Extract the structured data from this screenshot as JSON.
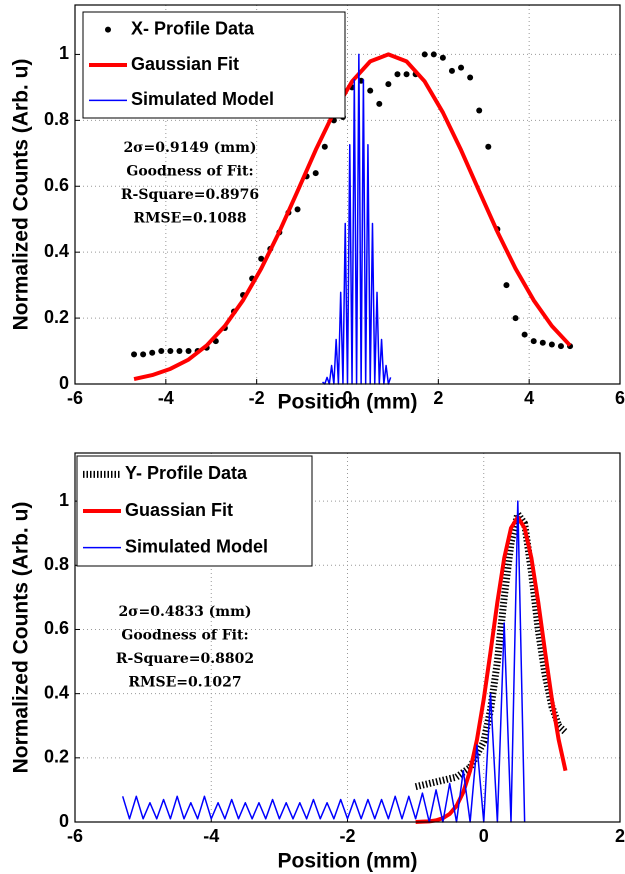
{
  "chart_data": [
    {
      "type": "line",
      "xlabel": "Position (mm)",
      "ylabel": "Normalized Counts (Arb. u)",
      "xlim": [
        -6,
        6
      ],
      "xticks": [
        -6,
        -4,
        -2,
        0,
        2,
        4,
        6
      ],
      "ylim": [
        0,
        1.15
      ],
      "yticks": [
        0,
        0.2,
        0.4,
        0.6,
        0.8,
        1
      ],
      "grid": true,
      "legend": "upper left",
      "annotations": [
        "2σ=0.9149 (mm)",
        "Goodness of Fit:",
        "R-Square=0.8976",
        "RMSE=0.1088"
      ],
      "series": [
        {
          "name": "X- Profile Data",
          "color": "#000000",
          "marker": "dot",
          "x": [
            -4.7,
            -4.5,
            -4.3,
            -4.1,
            -3.9,
            -3.7,
            -3.5,
            -3.3,
            -3.1,
            -2.9,
            -2.7,
            -2.5,
            -2.3,
            -2.1,
            -1.9,
            -1.7,
            -1.5,
            -1.3,
            -1.1,
            -0.9,
            -0.7,
            -0.5,
            -0.3,
            -0.1,
            0.1,
            0.3,
            0.5,
            0.7,
            0.9,
            1.1,
            1.3,
            1.5,
            1.7,
            1.9,
            2.1,
            2.3,
            2.5,
            2.7,
            2.9,
            3.1,
            3.3,
            3.5,
            3.7,
            3.9,
            4.1,
            4.3,
            4.5,
            4.7,
            4.9
          ],
          "values": [
            0.09,
            0.09,
            0.095,
            0.1,
            0.1,
            0.1,
            0.1,
            0.1,
            0.11,
            0.13,
            0.17,
            0.22,
            0.27,
            0.32,
            0.38,
            0.41,
            0.46,
            0.52,
            0.53,
            0.63,
            0.64,
            0.72,
            0.8,
            0.81,
            0.9,
            0.92,
            0.89,
            0.85,
            0.91,
            0.94,
            0.94,
            0.94,
            1.0,
            1.0,
            0.99,
            0.95,
            0.96,
            0.93,
            0.83,
            0.72,
            0.47,
            0.3,
            0.2,
            0.15,
            0.13,
            0.125,
            0.12,
            0.115,
            0.115
          ]
        },
        {
          "name": "Gaussian Fit",
          "color": "#ff0000",
          "linewidth": 4,
          "x": [
            -4.7,
            -4.3,
            -3.9,
            -3.5,
            -3.1,
            -2.7,
            -2.3,
            -1.9,
            -1.5,
            -1.1,
            -0.7,
            -0.3,
            0.1,
            0.5,
            0.9,
            1.3,
            1.7,
            2.1,
            2.5,
            2.9,
            3.3,
            3.7,
            4.1,
            4.5,
            4.9
          ],
          "values": [
            0.015,
            0.027,
            0.046,
            0.074,
            0.117,
            0.176,
            0.254,
            0.35,
            0.462,
            0.585,
            0.71,
            0.824,
            0.918,
            0.979,
            1.0,
            0.979,
            0.918,
            0.824,
            0.71,
            0.585,
            0.462,
            0.35,
            0.254,
            0.176,
            0.117
          ]
        },
        {
          "name": "Simulated Model",
          "color": "#0000ff",
          "linewidth": 1.5,
          "x": [
            -0.55,
            -0.5,
            -0.45,
            -0.4,
            -0.35,
            -0.3,
            -0.25,
            -0.2,
            -0.15,
            -0.1,
            -0.05,
            0,
            0.05,
            0.1,
            0.15,
            0.2,
            0.25,
            0.3,
            0.35,
            0.4,
            0.45,
            0.5,
            0.55,
            0.6,
            0.65,
            0.7,
            0.75,
            0.8,
            0.85,
            0.9,
            0.95
          ],
          "values": [
            0.006,
            0,
            0.02,
            0,
            0.056,
            0,
            0.135,
            0,
            0.278,
            0,
            0.487,
            0,
            0.726,
            0,
            0.923,
            0,
            1.0,
            0,
            0.923,
            0,
            0.726,
            0,
            0.487,
            0,
            0.278,
            0,
            0.135,
            0,
            0.056,
            0,
            0.02
          ]
        }
      ]
    },
    {
      "type": "line",
      "xlabel": "Position (mm)",
      "ylabel": "Normalized Counts (Arb. u)",
      "xlim": [
        -6,
        2
      ],
      "xticks": [
        -6,
        -4,
        -2,
        0,
        2
      ],
      "ylim": [
        0,
        1.15
      ],
      "yticks": [
        0,
        0.2,
        0.4,
        0.6,
        0.8,
        1
      ],
      "grid": true,
      "legend": "upper left",
      "annotations": [
        "2σ=0.4833 (mm)",
        "Goodness of Fit:",
        "R-Square=0.8802",
        "RMSE=0.1027"
      ],
      "series": [
        {
          "name": "Y- Profile Data",
          "color": "#000000",
          "linestyle": "dotted",
          "linewidth": 7,
          "x": [
            -1,
            -0.8,
            -0.6,
            -0.4,
            -0.2,
            0,
            0.1,
            0.2,
            0.3,
            0.4,
            0.5,
            0.6,
            0.7,
            0.8,
            0.9,
            1,
            1.1,
            1.2
          ],
          "values": [
            0.11,
            0.12,
            0.13,
            0.14,
            0.17,
            0.25,
            0.35,
            0.5,
            0.7,
            0.87,
            0.96,
            0.93,
            0.78,
            0.6,
            0.46,
            0.36,
            0.3,
            0.28
          ]
        },
        {
          "name": "Guassian Fit",
          "color": "#ff0000",
          "linewidth": 4,
          "x": [
            -1,
            -0.9,
            -0.8,
            -0.7,
            -0.6,
            -0.5,
            -0.4,
            -0.3,
            -0.2,
            -0.1,
            0,
            0.1,
            0.2,
            0.3,
            0.4,
            0.5,
            0.6,
            0.7,
            0.8,
            0.9,
            1,
            1.1,
            1.2
          ],
          "values": [
            0,
            0.001,
            0.002,
            0.005,
            0.012,
            0.025,
            0.05,
            0.093,
            0.16,
            0.256,
            0.383,
            0.531,
            0.685,
            0.822,
            0.916,
            0.95,
            0.916,
            0.822,
            0.685,
            0.531,
            0.383,
            0.256,
            0.16
          ]
        },
        {
          "name": "Simulated Model",
          "color": "#0000ff",
          "linewidth": 1.5,
          "x": [
            -5.3,
            -5.2,
            -5.1,
            -5,
            -4.9,
            -4.8,
            -4.7,
            -4.6,
            -4.5,
            -4.4,
            -4.3,
            -4.2,
            -4.1,
            -4,
            -3.9,
            -3.8,
            -3.7,
            -3.6,
            -3.5,
            -3.4,
            -3.3,
            -3.2,
            -3.1,
            -3,
            -2.9,
            -2.8,
            -2.7,
            -2.6,
            -2.5,
            -2.4,
            -2.3,
            -2.2,
            -2.1,
            -2,
            -1.9,
            -1.8,
            -1.7,
            -1.6,
            -1.5,
            -1.4,
            -1.3,
            -1.2,
            -1.1,
            -1,
            -0.9,
            -0.8,
            -0.7,
            -0.6,
            -0.5,
            -0.4,
            -0.3,
            -0.2,
            -0.1,
            0,
            0.1,
            0.2,
            0.3,
            0.4,
            0.5,
            0.6
          ],
          "values": [
            0.08,
            0.01,
            0.08,
            0.01,
            0.06,
            0.01,
            0.07,
            0.01,
            0.08,
            0.01,
            0.06,
            0.01,
            0.08,
            0.01,
            0.06,
            0.01,
            0.07,
            0.01,
            0.06,
            0.01,
            0.06,
            0.01,
            0.07,
            0.01,
            0.06,
            0.01,
            0.06,
            0.01,
            0.07,
            0.01,
            0.06,
            0.01,
            0.07,
            0.01,
            0.07,
            0.01,
            0.07,
            0.01,
            0.07,
            0.01,
            0.08,
            0.01,
            0.08,
            0.01,
            0.09,
            0,
            0.1,
            0,
            0.12,
            0,
            0.16,
            0,
            0.24,
            0,
            0.4,
            0,
            0.62,
            0,
            1.0,
            0
          ]
        }
      ]
    }
  ]
}
